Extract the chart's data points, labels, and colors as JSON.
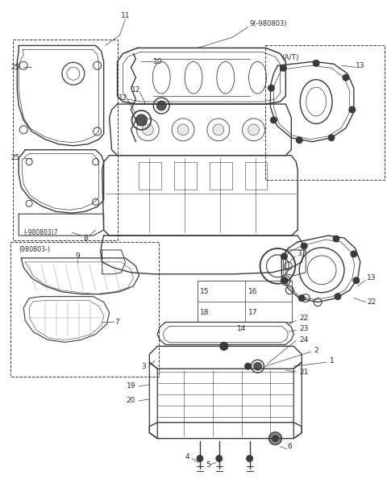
{
  "bg_color": "#ffffff",
  "line_color": "#3a3a3a",
  "text_color": "#2a2a2a",
  "fig_width": 4.8,
  "fig_height": 6.1,
  "dpi": 100,
  "xlim": [
    0,
    480
  ],
  "ylim": [
    0,
    610
  ]
}
